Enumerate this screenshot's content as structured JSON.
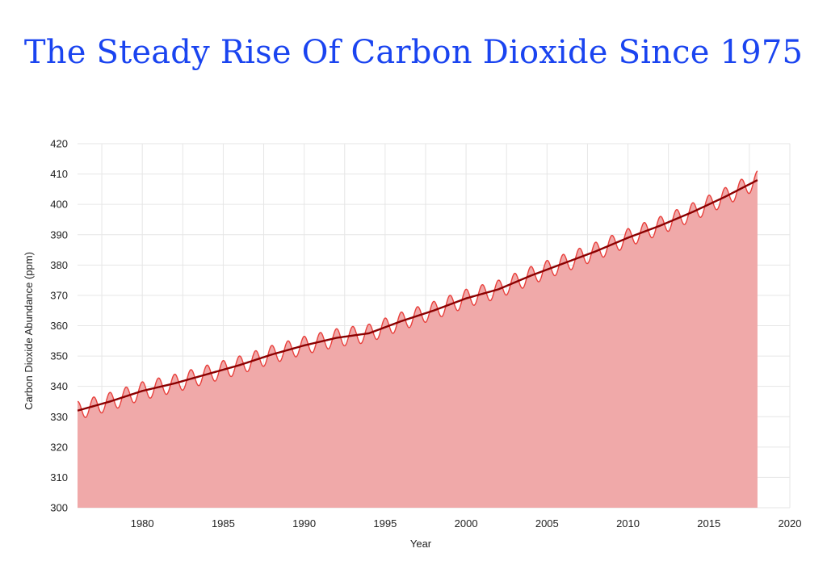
{
  "chart_data": {
    "type": "area",
    "title": "The Steady Rise Of Carbon Dioxide Since 1975",
    "xlabel": "Year",
    "ylabel": "Carbon Dioxide Abundance (ppm)",
    "xlim": [
      1976,
      2020
    ],
    "ylim": [
      300,
      420
    ],
    "x_ticks": [
      1980,
      1985,
      1990,
      1995,
      2000,
      2005,
      2010,
      2015,
      2020
    ],
    "y_ticks": [
      300,
      310,
      320,
      330,
      340,
      350,
      360,
      370,
      380,
      390,
      400,
      410,
      420
    ],
    "grid": true,
    "seasonal_amplitude_ppm": 3,
    "colors": {
      "fill": "#f0a9a9",
      "trend": "#8b0000",
      "seasonal": "#e8403c",
      "grid": "#e6e6e6"
    },
    "series": [
      {
        "x": [
          1976,
          1978,
          1980,
          1982,
          1984,
          1986,
          1988,
          1990,
          1992,
          1994,
          1996,
          1998,
          2000,
          2002,
          2004,
          2006,
          2008,
          2010,
          2012,
          2014,
          2016,
          2018
        ],
        "values": [
          332,
          335,
          338.5,
          341,
          344,
          347,
          350.5,
          353.5,
          356,
          357.5,
          361.5,
          365,
          369,
          372,
          376.5,
          380.5,
          384.5,
          389,
          393,
          397.5,
          402.5,
          408
        ]
      }
    ]
  }
}
